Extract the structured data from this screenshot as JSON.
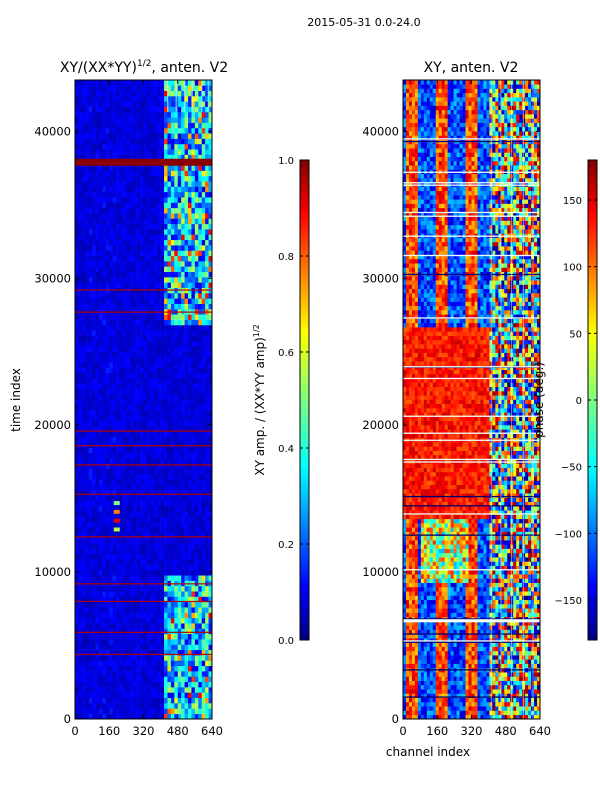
{
  "figure": {
    "suptitle": "2015-05-31 0.0-24.0",
    "colors": {
      "jet": [
        "#000080",
        "#0000ff",
        "#00ffff",
        "#ffff00",
        "#ff0000",
        "#800000"
      ],
      "background": "#ffffff"
    }
  },
  "chart_data": [
    {
      "type": "heatmap",
      "title": "XY/(XX*YY)",
      "title_sup": "1/2",
      "title_tail": ", anten. V2",
      "xlabel": "",
      "ylabel": "time index",
      "xlim": [
        0,
        640
      ],
      "ylim": [
        0,
        43500
      ],
      "xticks": [
        0,
        160,
        320,
        480,
        640
      ],
      "yticks": [
        0,
        10000,
        20000,
        30000,
        40000
      ],
      "colormap": "jet",
      "colorbar": {
        "label": "XY amp. / (XX*YY amp)",
        "label_sup": "1/2",
        "range": [
          0.0,
          1.0
        ],
        "ticks": [
          "0.0",
          "0.2",
          "0.4",
          "0.6",
          "0.8",
          "1.0"
        ]
      },
      "features": {
        "background_value": 0.05,
        "active_channel_range": [
          410,
          640
        ],
        "active_time_ranges": [
          [
            0,
            9500
          ],
          [
            26500,
            43500
          ]
        ],
        "saturated_rows_time": [
          37900,
          17300,
          15300,
          12400,
          9200,
          8000,
          5900,
          4400,
          18600,
          19600,
          27700,
          29200
        ],
        "hotspot": {
          "channel": 195,
          "time": 13800,
          "value": 0.9
        }
      }
    },
    {
      "type": "heatmap",
      "title": "XY, anten. V2",
      "xlabel": "channel index",
      "ylabel": "",
      "xlim": [
        0,
        640
      ],
      "ylim": [
        0,
        43500
      ],
      "xticks": [
        0,
        160,
        320,
        480,
        640
      ],
      "yticks": [
        0,
        10000,
        20000,
        30000,
        40000
      ],
      "colormap": "jet",
      "colorbar": {
        "label": "phase (deg.)",
        "range": [
          -180,
          180
        ],
        "ticks": [
          "150",
          "100",
          "50",
          "0",
          "−50",
          "−100",
          "−150"
        ]
      },
      "features": {
        "warm_block_time": [
          13500,
          26500
        ],
        "striped_channels": [
          [
            0,
            400
          ]
        ],
        "noisy_channel_range": [
          400,
          640
        ]
      }
    }
  ]
}
